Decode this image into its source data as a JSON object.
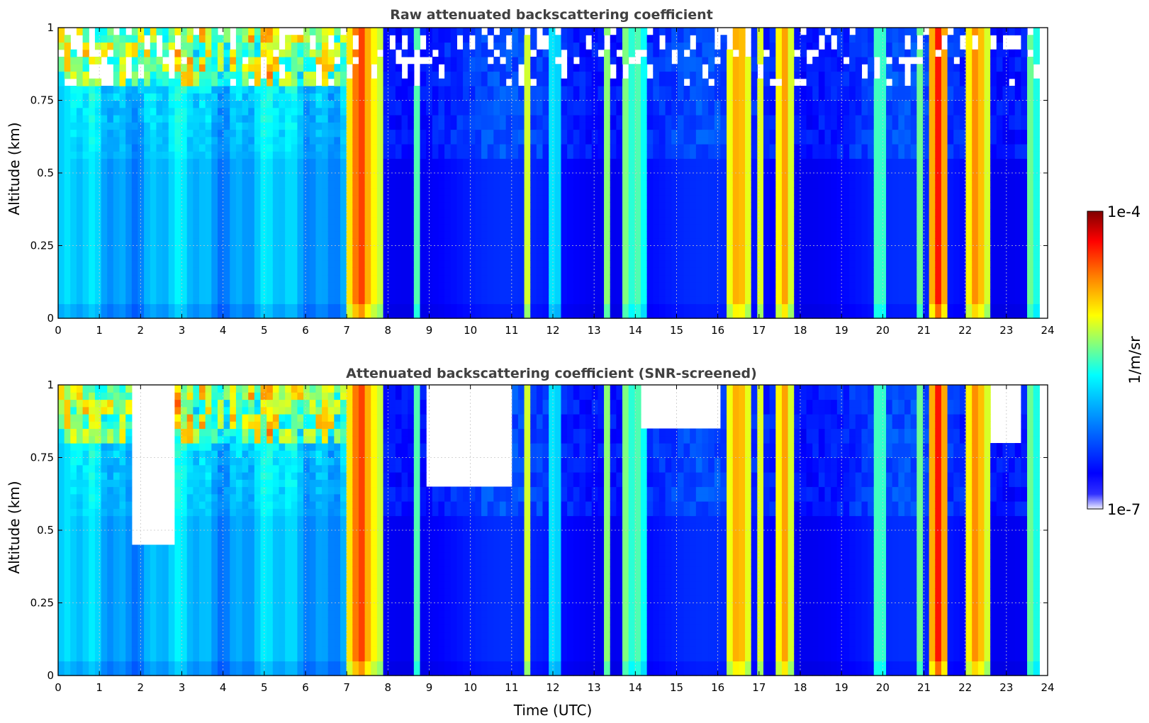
{
  "chart_data": [
    {
      "type": "heatmap",
      "title": "Raw attenuated backscattering coefficient",
      "xlabel": "",
      "ylabel": "Altitude (km)",
      "xlim": [
        0,
        24
      ],
      "ylim": [
        0,
        1
      ],
      "x_ticks": [
        "0",
        "1",
        "2",
        "3",
        "4",
        "5",
        "6",
        "7",
        "8",
        "9",
        "10",
        "11",
        "12",
        "13",
        "14",
        "15",
        "16",
        "17",
        "18",
        "19",
        "20",
        "21",
        "22",
        "23",
        "24"
      ],
      "y_ticks": [
        "0",
        "0.25",
        "0.5",
        "0.75",
        "1"
      ],
      "grid": true,
      "screened": false
    },
    {
      "type": "heatmap",
      "title": "Attenuated backscattering coefficient (SNR-screened)",
      "xlabel": "Time (UTC)",
      "ylabel": "Altitude (km)",
      "xlim": [
        0,
        24
      ],
      "ylim": [
        0,
        1
      ],
      "x_ticks": [
        "0",
        "1",
        "2",
        "3",
        "4",
        "5",
        "6",
        "7",
        "8",
        "9",
        "10",
        "11",
        "12",
        "13",
        "14",
        "15",
        "16",
        "17",
        "18",
        "19",
        "20",
        "21",
        "22",
        "23",
        "24"
      ],
      "y_ticks": [
        "0",
        "0.25",
        "0.5",
        "0.75",
        "1"
      ],
      "grid": true,
      "screened": true
    }
  ],
  "data_end_hour": 23.8,
  "colorbar": {
    "label": "1/m/sr",
    "max_label": "1e-4",
    "min_label": "1e-7",
    "colormap": "jet",
    "scale": "log"
  },
  "cloud_bands": [
    {
      "start": 7.1,
      "end": 7.55,
      "level": 0.84
    },
    {
      "start": 7.55,
      "end": 7.85,
      "level": 0.66
    },
    {
      "start": 8.7,
      "end": 8.78,
      "level": 0.5
    },
    {
      "start": 11.3,
      "end": 11.4,
      "level": 0.62
    },
    {
      "start": 12.0,
      "end": 12.08,
      "level": 0.42
    },
    {
      "start": 13.3,
      "end": 13.4,
      "level": 0.56
    },
    {
      "start": 13.75,
      "end": 13.85,
      "level": 0.55
    },
    {
      "start": 14.05,
      "end": 14.15,
      "level": 0.5
    },
    {
      "start": 16.25,
      "end": 16.75,
      "level": 0.74
    },
    {
      "start": 16.95,
      "end": 17.1,
      "level": 0.6
    },
    {
      "start": 17.45,
      "end": 17.75,
      "level": 0.74
    },
    {
      "start": 19.85,
      "end": 20.0,
      "level": 0.5
    },
    {
      "start": 20.85,
      "end": 20.95,
      "level": 0.48
    },
    {
      "start": 21.2,
      "end": 21.5,
      "level": 0.86
    },
    {
      "start": 22.05,
      "end": 22.5,
      "level": 0.76
    },
    {
      "start": 23.5,
      "end": 23.7,
      "level": 0.5
    }
  ]
}
